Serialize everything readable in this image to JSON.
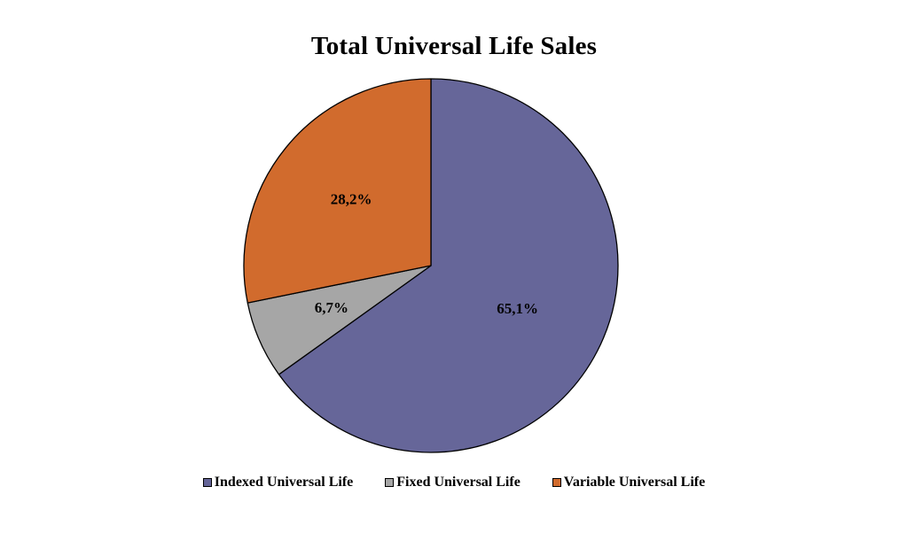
{
  "chart_data": {
    "type": "pie",
    "title": "Total Universal Life Sales",
    "categories": [
      "Indexed Universal Life",
      "Fixed Universal Life",
      "Variable Universal Life"
    ],
    "values": [
      65.1,
      6.7,
      28.2
    ],
    "value_labels": [
      "65,1%",
      "6,7%",
      "28,2%"
    ],
    "colors": [
      "#666699",
      "#a6a6a6",
      "#d16b2d"
    ],
    "start_angle": "12 o'clock",
    "direction": "clockwise",
    "legend": {
      "placement": "bottom",
      "items": [
        {
          "label": "Indexed Universal Life",
          "color": "#666699"
        },
        {
          "label": "Fixed Universal Life",
          "color": "#a6a6a6"
        },
        {
          "label": "Variable Universal Life",
          "color": "#d16b2d"
        }
      ]
    }
  }
}
